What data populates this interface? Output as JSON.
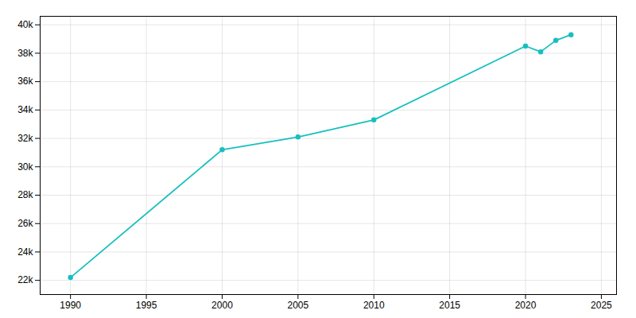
{
  "chart_data": {
    "type": "line",
    "x": [
      1990,
      2000,
      2005,
      2010,
      2020,
      2021,
      2022,
      2023
    ],
    "values": [
      22200,
      31200,
      32100,
      33300,
      38500,
      38100,
      38900,
      39300
    ],
    "color": "#17BFC0",
    "marker": "circle",
    "xlim": [
      1988,
      2026
    ],
    "xticks": [
      1990,
      1995,
      2000,
      2005,
      2010,
      2015,
      2020,
      2025
    ],
    "ylim": [
      21000,
      40600
    ],
    "yticks": [
      {
        "value": 22000,
        "label": "22k"
      },
      {
        "value": 24000,
        "label": "24k"
      },
      {
        "value": 26000,
        "label": "26k"
      },
      {
        "value": 28000,
        "label": "28k"
      },
      {
        "value": 30000,
        "label": "30k"
      },
      {
        "value": 32000,
        "label": "32k"
      },
      {
        "value": 34000,
        "label": "34k"
      },
      {
        "value": 36000,
        "label": "36k"
      },
      {
        "value": 38000,
        "label": "38k"
      },
      {
        "value": 40000,
        "label": "40k"
      }
    ],
    "grid": true
  }
}
